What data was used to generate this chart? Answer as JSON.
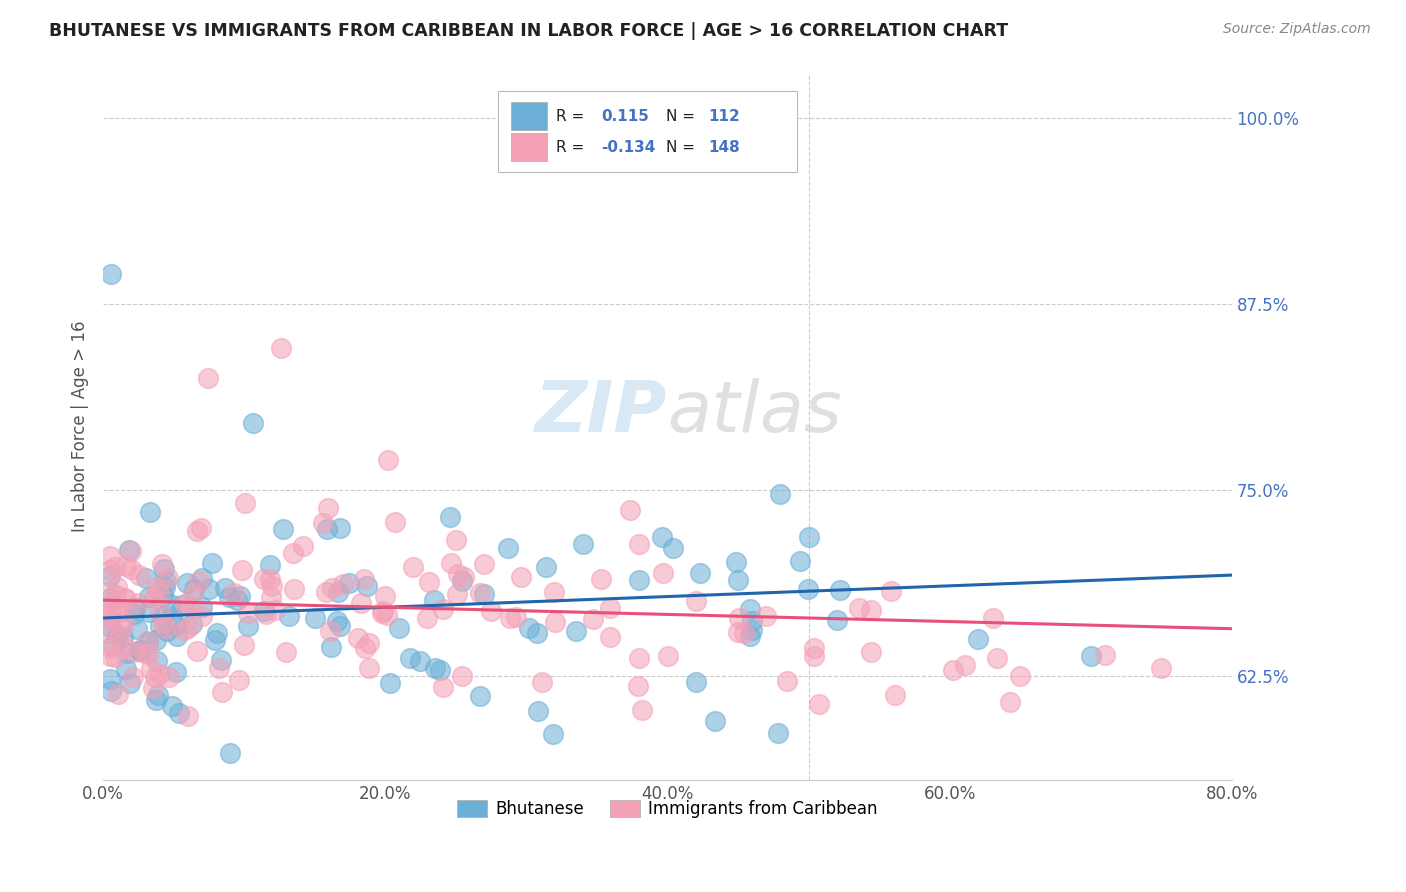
{
  "title": "BHUTANESE VS IMMIGRANTS FROM CARIBBEAN IN LABOR FORCE | AGE > 16 CORRELATION CHART",
  "source": "Source: ZipAtlas.com",
  "ylabel": "In Labor Force | Age > 16",
  "xlabel_ticks": [
    "0.0%",
    "20.0%",
    "40.0%",
    "60.0%",
    "80.0%"
  ],
  "xlabel_vals": [
    0.0,
    0.2,
    0.4,
    0.6,
    0.8
  ],
  "ylabel_ticks": [
    "62.5%",
    "75.0%",
    "87.5%",
    "100.0%"
  ],
  "ylabel_vals": [
    0.625,
    0.75,
    0.875,
    1.0
  ],
  "xmin": 0.0,
  "xmax": 0.8,
  "ymin": 0.555,
  "ymax": 1.03,
  "blue_R": "0.115",
  "blue_N": "112",
  "pink_R": "-0.134",
  "pink_N": "148",
  "blue_color": "#6baed6",
  "pink_color": "#f4a0b5",
  "blue_line_color": "#2166ac",
  "pink_line_color": "#e8507a",
  "watermark": "ZIPatlas",
  "legend_label_blue": "Bhutanese",
  "legend_label_pink": "Immigrants from Caribbean"
}
